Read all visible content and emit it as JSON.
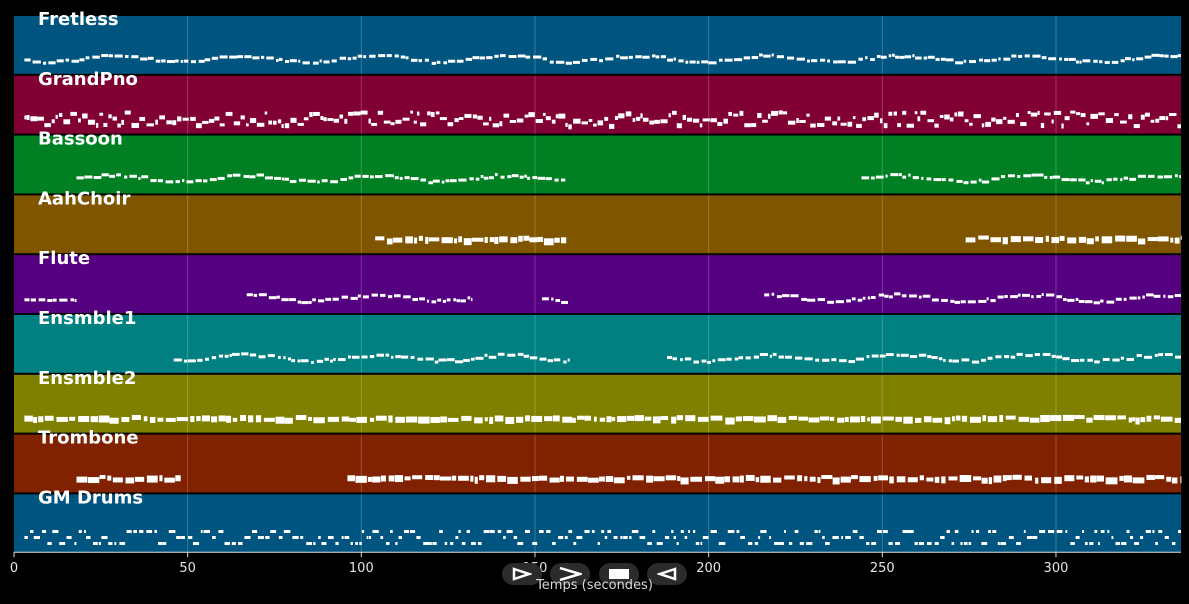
{
  "chart_data": {
    "type": "piano-roll",
    "xlabel": "Temps (secondes)",
    "xlim": [
      0,
      336
    ],
    "xticks": [
      0,
      50,
      100,
      150,
      200,
      250,
      300
    ],
    "grid": true,
    "tracks": [
      {
        "name": "Fretless",
        "color": "#005580",
        "segments": [
          [
            3,
            336
          ]
        ],
        "density": "sparse"
      },
      {
        "name": "GrandPno",
        "color": "#800033",
        "segments": [
          [
            3,
            336
          ]
        ],
        "density": "dense"
      },
      {
        "name": "Bassoon",
        "color": "#008022",
        "segments": [
          [
            18,
            159
          ],
          [
            244,
            336
          ]
        ],
        "density": "sparse"
      },
      {
        "name": "AahChoir",
        "color": "#7f5500",
        "segments": [
          [
            104,
            159
          ],
          [
            274,
            336
          ]
        ],
        "density": "blocks"
      },
      {
        "name": "Flute",
        "color": "#550080",
        "segments": [
          [
            3,
            18
          ],
          [
            67,
            132
          ],
          [
            152,
            160
          ],
          [
            216,
            336
          ]
        ],
        "density": "sparse"
      },
      {
        "name": "Ensmble1",
        "color": "#008080",
        "segments": [
          [
            46,
            160
          ],
          [
            188,
            336
          ]
        ],
        "density": "sparse"
      },
      {
        "name": "Ensmble2",
        "color": "#808000",
        "segments": [
          [
            3,
            336
          ]
        ],
        "density": "blocks"
      },
      {
        "name": "Trombone",
        "color": "#802200",
        "segments": [
          [
            18,
            48
          ],
          [
            96,
            336
          ]
        ],
        "density": "blocks"
      },
      {
        "name": "GM Drums",
        "color": "#005580",
        "segments": [
          [
            3,
            336
          ]
        ],
        "density": "drums"
      }
    ]
  },
  "controls": {
    "play_icon": "play-outline-icon",
    "forward_icon": "fast-forward-icon",
    "stop_icon": "stop-icon",
    "back_icon": "rewind-icon"
  }
}
